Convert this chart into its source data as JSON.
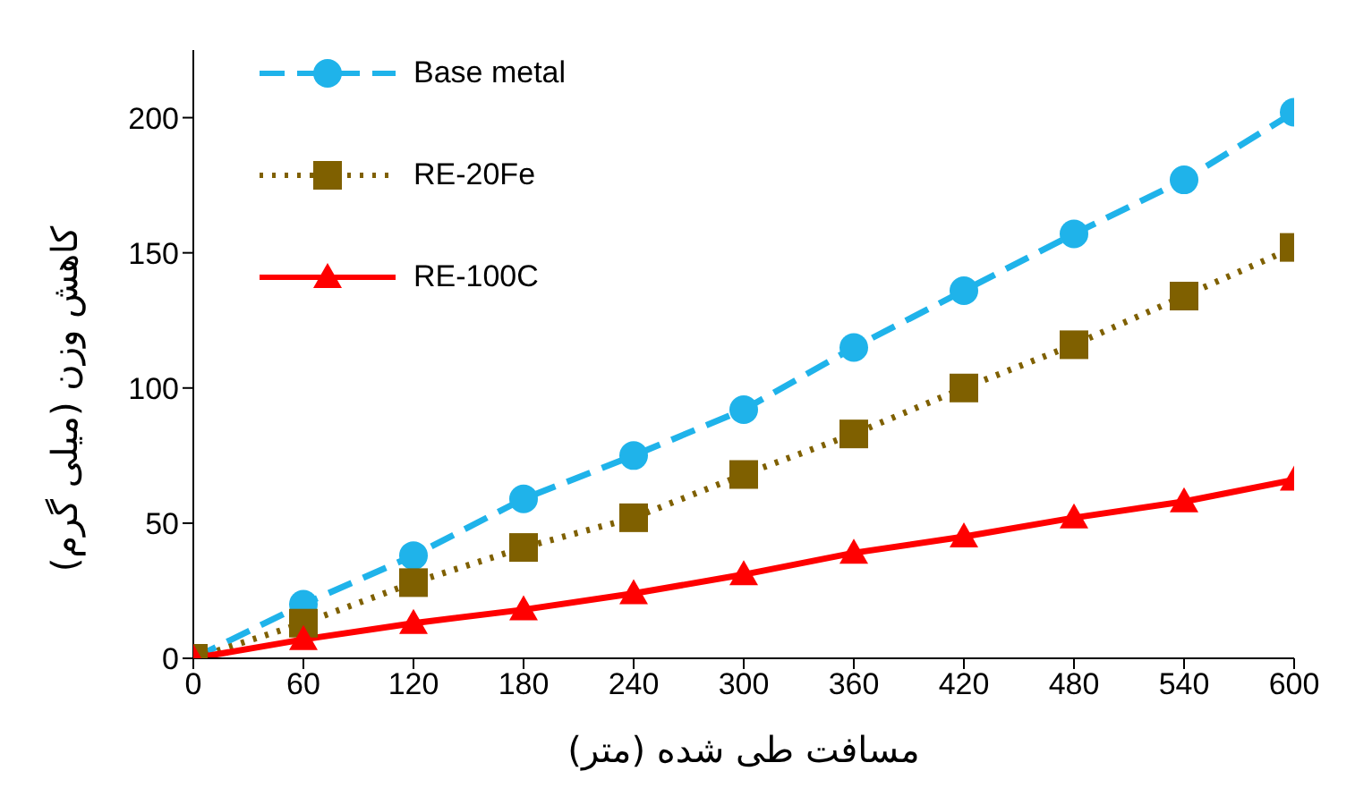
{
  "chart_data": {
    "type": "line",
    "xlabel": "مسافت طی شده (متر)",
    "ylabel": "کاهش وزن (میلی گرم)",
    "x": [
      0,
      60,
      120,
      180,
      240,
      300,
      360,
      420,
      480,
      540,
      600
    ],
    "xlim": [
      0,
      600
    ],
    "xticks": [
      0,
      60,
      120,
      180,
      240,
      300,
      360,
      420,
      480,
      540,
      600
    ],
    "ylim": [
      0,
      225
    ],
    "yticks": [
      0,
      50,
      100,
      150,
      200
    ],
    "grid": false,
    "legend": "top left",
    "series": [
      {
        "name": "Base metal",
        "color": "#1fb3ea",
        "marker": "circle",
        "line_style": "dashed",
        "values": [
          0,
          20,
          38,
          59,
          75,
          92,
          115,
          136,
          157,
          177,
          202
        ]
      },
      {
        "name": "RE-20Fe",
        "color": "#7f6000",
        "marker": "square",
        "line_style": "dotted",
        "values": [
          0,
          13,
          28,
          41,
          52,
          68,
          83,
          100,
          116,
          134,
          152
        ]
      },
      {
        "name": "RE-100C",
        "color": "#ff0000",
        "marker": "triangle",
        "line_style": "solid",
        "values": [
          0,
          7,
          13,
          18,
          24,
          31,
          39,
          45,
          52,
          58,
          66
        ]
      }
    ]
  }
}
